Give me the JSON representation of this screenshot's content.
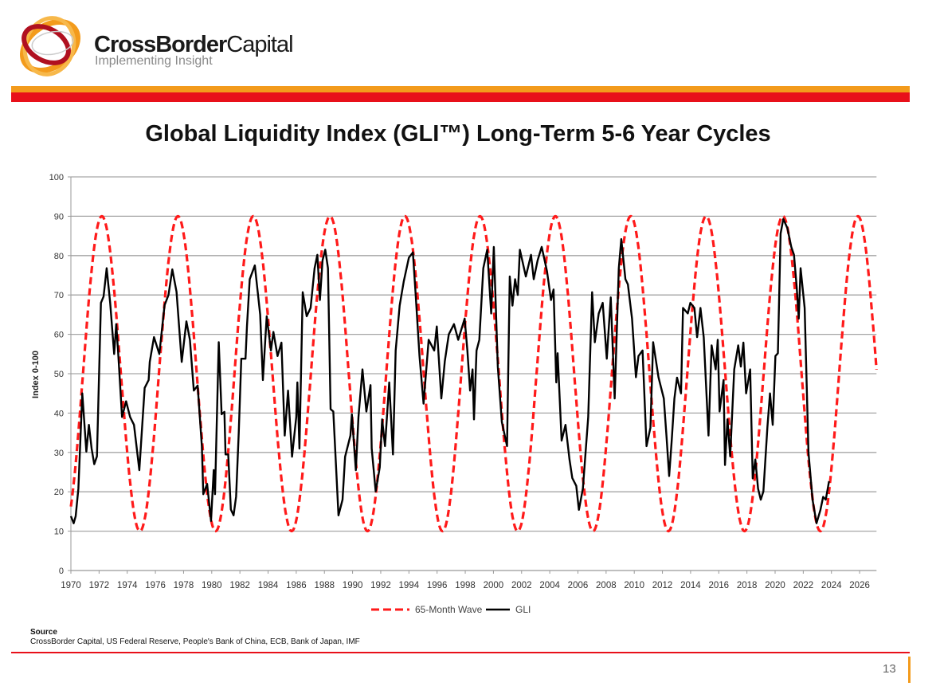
{
  "header": {
    "brand_bold": "CrossBorder",
    "brand_light": "Capital",
    "tagline": "Implementing Insight",
    "colors": {
      "orange": "#f39b1c",
      "red": "#e8101a"
    }
  },
  "slide": {
    "title": "Global Liquidity Index (GLI™) Long-Term 5-6 Year Cycles",
    "source_label": "Source",
    "source_text": "CrossBorder Capital, US Federal Reserve, People's Bank of China, ECB, Bank of Japan, IMF",
    "page_number": "13"
  },
  "chart_data": {
    "type": "line",
    "title": "",
    "xlabel": "",
    "ylabel": "Index 0-100",
    "xlim": [
      1970,
      2027.2
    ],
    "ylim": [
      0,
      100
    ],
    "x_ticks": [
      "1970",
      "1972",
      "1974",
      "1976",
      "1978",
      "1980",
      "1982",
      "1984",
      "1986",
      "1988",
      "1990",
      "1992",
      "1994",
      "1996",
      "1998",
      "2000",
      "2002",
      "2004",
      "2006",
      "2008",
      "2010",
      "2012",
      "2014",
      "2016",
      "2018",
      "2020",
      "2022",
      "2024",
      "2026"
    ],
    "y_ticks": [
      "0",
      "10",
      "20",
      "30",
      "40",
      "50",
      "60",
      "70",
      "80",
      "90",
      "100"
    ],
    "grid": "horizontal",
    "legend_position": "bottom",
    "series": [
      {
        "name": "65-Month Wave",
        "color": "#ff1a1a",
        "style": "dashed",
        "min": 10,
        "max": 90,
        "peak_years": [
          1972.2,
          1977.6,
          1982.95,
          1988.4,
          1993.72,
          1999.05,
          2004.4,
          2009.75,
          2015.1,
          2020.55,
          2025.88
        ],
        "x_range": [
          1970,
          2027.2
        ]
      },
      {
        "name": "GLI",
        "color": "#000000",
        "style": "solid",
        "points": [
          [
            1970.0,
            13.8
          ],
          [
            1970.2,
            12
          ],
          [
            1970.34,
            13.8
          ],
          [
            1970.53,
            20.8
          ],
          [
            1970.81,
            45
          ],
          [
            1971.1,
            30.2
          ],
          [
            1971.28,
            37
          ],
          [
            1971.47,
            31
          ],
          [
            1971.66,
            27
          ],
          [
            1971.85,
            29
          ],
          [
            1972.13,
            68
          ],
          [
            1972.32,
            69.6
          ],
          [
            1972.54,
            76.8
          ],
          [
            1972.79,
            68
          ],
          [
            1973.07,
            55
          ],
          [
            1973.22,
            62.6
          ],
          [
            1973.35,
            55.8
          ],
          [
            1973.63,
            39
          ],
          [
            1973.92,
            43
          ],
          [
            1974.2,
            39
          ],
          [
            1974.48,
            37
          ],
          [
            1974.86,
            25.5
          ],
          [
            1975.24,
            46.4
          ],
          [
            1975.52,
            48.4
          ],
          [
            1975.6,
            53
          ],
          [
            1975.9,
            59.3
          ],
          [
            1976.28,
            55
          ],
          [
            1976.65,
            67.4
          ],
          [
            1976.93,
            70
          ],
          [
            1977.2,
            76.5
          ],
          [
            1977.5,
            70.8
          ],
          [
            1977.87,
            53
          ],
          [
            1978.2,
            63.3
          ],
          [
            1978.45,
            58.6
          ],
          [
            1978.73,
            45.7
          ],
          [
            1979.0,
            47
          ],
          [
            1979.3,
            31.6
          ],
          [
            1979.4,
            19.4
          ],
          [
            1979.67,
            22
          ],
          [
            1979.95,
            12.6
          ],
          [
            1980.14,
            25.5
          ],
          [
            1980.23,
            19.4
          ],
          [
            1980.5,
            58
          ],
          [
            1980.7,
            39.7
          ],
          [
            1980.9,
            40.3
          ],
          [
            1980.98,
            29.5
          ],
          [
            1981.17,
            29.5
          ],
          [
            1981.36,
            15.5
          ],
          [
            1981.55,
            14
          ],
          [
            1981.73,
            18.8
          ],
          [
            1981.92,
            35
          ],
          [
            1982.1,
            53.8
          ],
          [
            1982.4,
            53.8
          ],
          [
            1982.5,
            62
          ],
          [
            1982.7,
            74
          ],
          [
            1983.06,
            77.5
          ],
          [
            1983.44,
            65
          ],
          [
            1983.63,
            48.4
          ],
          [
            1983.9,
            64.6
          ],
          [
            1984.2,
            55.9
          ],
          [
            1984.38,
            60.6
          ],
          [
            1984.67,
            54.5
          ],
          [
            1984.95,
            57.9
          ],
          [
            1985.18,
            34.3
          ],
          [
            1985.42,
            45.7
          ],
          [
            1985.7,
            28.9
          ],
          [
            1986.0,
            39
          ],
          [
            1986.08,
            47.8
          ],
          [
            1986.23,
            31
          ],
          [
            1986.46,
            70.7
          ],
          [
            1986.74,
            64.6
          ],
          [
            1987.02,
            66.7
          ],
          [
            1987.3,
            76.8
          ],
          [
            1987.5,
            80.2
          ],
          [
            1987.68,
            68.7
          ],
          [
            1987.87,
            78.8
          ],
          [
            1988.06,
            81.5
          ],
          [
            1988.25,
            76.8
          ],
          [
            1988.44,
            41
          ],
          [
            1988.63,
            40.4
          ],
          [
            1989.0,
            14
          ],
          [
            1989.29,
            18
          ],
          [
            1989.47,
            28.9
          ],
          [
            1989.85,
            34.3
          ],
          [
            1989.95,
            39.7
          ],
          [
            1990.23,
            25.5
          ],
          [
            1990.42,
            39
          ],
          [
            1990.7,
            51.1
          ],
          [
            1990.98,
            40.4
          ],
          [
            1991.27,
            47.1
          ],
          [
            1991.36,
            31
          ],
          [
            1991.64,
            20.1
          ],
          [
            1991.93,
            26.2
          ],
          [
            1992.1,
            38.4
          ],
          [
            1992.3,
            31.6
          ],
          [
            1992.6,
            47.8
          ],
          [
            1992.87,
            29.5
          ],
          [
            1993.06,
            55.9
          ],
          [
            1993.34,
            67.3
          ],
          [
            1993.63,
            73.4
          ],
          [
            1994.0,
            79.5
          ],
          [
            1994.28,
            80.8
          ],
          [
            1994.47,
            70.7
          ],
          [
            1994.75,
            54.5
          ],
          [
            1995.04,
            42.4
          ],
          [
            1995.4,
            58.6
          ],
          [
            1995.8,
            55.9
          ],
          [
            1995.98,
            62
          ],
          [
            1996.3,
            43.7
          ],
          [
            1996.55,
            53.2
          ],
          [
            1996.83,
            60
          ],
          [
            1997.2,
            62.6
          ],
          [
            1997.5,
            58.6
          ],
          [
            1997.96,
            64
          ],
          [
            1998.15,
            55.9
          ],
          [
            1998.34,
            45.7
          ],
          [
            1998.52,
            51.1
          ],
          [
            1998.62,
            38.4
          ],
          [
            1998.8,
            55.9
          ],
          [
            1999.0,
            58.6
          ],
          [
            1999.28,
            76.8
          ],
          [
            1999.56,
            81.5
          ],
          [
            1999.84,
            65.3
          ],
          [
            2000.03,
            82.2
          ],
          [
            2000.31,
            51.8
          ],
          [
            2000.6,
            37.7
          ],
          [
            2000.97,
            31.6
          ],
          [
            2001.16,
            74.7
          ],
          [
            2001.35,
            67.3
          ],
          [
            2001.54,
            74
          ],
          [
            2001.73,
            70
          ],
          [
            2001.88,
            81.5
          ],
          [
            2002.3,
            74.7
          ],
          [
            2002.67,
            80.2
          ],
          [
            2002.86,
            74
          ],
          [
            2003.14,
            78.8
          ],
          [
            2003.43,
            82.2
          ],
          [
            2003.8,
            76.1
          ],
          [
            2004.09,
            68.7
          ],
          [
            2004.27,
            71.4
          ],
          [
            2004.46,
            47.8
          ],
          [
            2004.56,
            55.2
          ],
          [
            2004.84,
            33
          ],
          [
            2005.12,
            37
          ],
          [
            2005.4,
            28.2
          ],
          [
            2005.6,
            23.5
          ],
          [
            2005.88,
            21.5
          ],
          [
            2006.07,
            15.4
          ],
          [
            2006.35,
            20.8
          ],
          [
            2006.73,
            39
          ],
          [
            2007.01,
            70.7
          ],
          [
            2007.2,
            58
          ],
          [
            2007.48,
            65.3
          ],
          [
            2007.76,
            68
          ],
          [
            2008.05,
            53.8
          ],
          [
            2008.33,
            69.4
          ],
          [
            2008.61,
            43.7
          ],
          [
            2008.9,
            76.8
          ],
          [
            2009.08,
            84.2
          ],
          [
            2009.37,
            74
          ],
          [
            2009.55,
            72.7
          ],
          [
            2009.84,
            64
          ],
          [
            2010.12,
            49.1
          ],
          [
            2010.3,
            54.5
          ],
          [
            2010.59,
            55.9
          ],
          [
            2010.87,
            31.6
          ],
          [
            2011.15,
            36.3
          ],
          [
            2011.34,
            58
          ],
          [
            2011.72,
            49.1
          ],
          [
            2012.1,
            43.7
          ],
          [
            2012.29,
            34
          ],
          [
            2012.48,
            24
          ],
          [
            2012.66,
            33
          ],
          [
            2012.85,
            43.7
          ],
          [
            2013.04,
            49
          ],
          [
            2013.32,
            45
          ],
          [
            2013.46,
            66.7
          ],
          [
            2013.8,
            65.3
          ],
          [
            2013.98,
            68
          ],
          [
            2014.27,
            66.7
          ],
          [
            2014.46,
            59.3
          ],
          [
            2014.7,
            66.7
          ],
          [
            2014.93,
            59.3
          ],
          [
            2015.27,
            34.3
          ],
          [
            2015.49,
            57.2
          ],
          [
            2015.78,
            51.1
          ],
          [
            2015.93,
            58.6
          ],
          [
            2016.06,
            40.4
          ],
          [
            2016.34,
            48.4
          ],
          [
            2016.44,
            26.8
          ],
          [
            2016.62,
            38.4
          ],
          [
            2016.81,
            29
          ],
          [
            2017.1,
            51.1
          ],
          [
            2017.38,
            57.2
          ],
          [
            2017.57,
            51.8
          ],
          [
            2017.75,
            57.9
          ],
          [
            2017.94,
            45
          ],
          [
            2018.23,
            51.1
          ],
          [
            2018.41,
            23.4
          ],
          [
            2018.6,
            28.2
          ],
          [
            2018.79,
            20.8
          ],
          [
            2018.98,
            18
          ],
          [
            2019.17,
            20.1
          ],
          [
            2019.45,
            36.3
          ],
          [
            2019.64,
            45
          ],
          [
            2019.83,
            37
          ],
          [
            2020.02,
            54.5
          ],
          [
            2020.2,
            55.2
          ],
          [
            2020.39,
            85.6
          ],
          [
            2020.58,
            89.3
          ],
          [
            2020.87,
            87
          ],
          [
            2021.15,
            82.2
          ],
          [
            2021.34,
            80.2
          ],
          [
            2021.53,
            72
          ],
          [
            2021.68,
            64
          ],
          [
            2021.81,
            76.8
          ],
          [
            2022.1,
            66.7
          ],
          [
            2022.37,
            30
          ],
          [
            2022.66,
            18
          ],
          [
            2022.94,
            12
          ],
          [
            2023.22,
            15.4
          ],
          [
            2023.41,
            18.7
          ],
          [
            2023.6,
            18
          ],
          [
            2023.83,
            22.7
          ]
        ]
      }
    ]
  }
}
